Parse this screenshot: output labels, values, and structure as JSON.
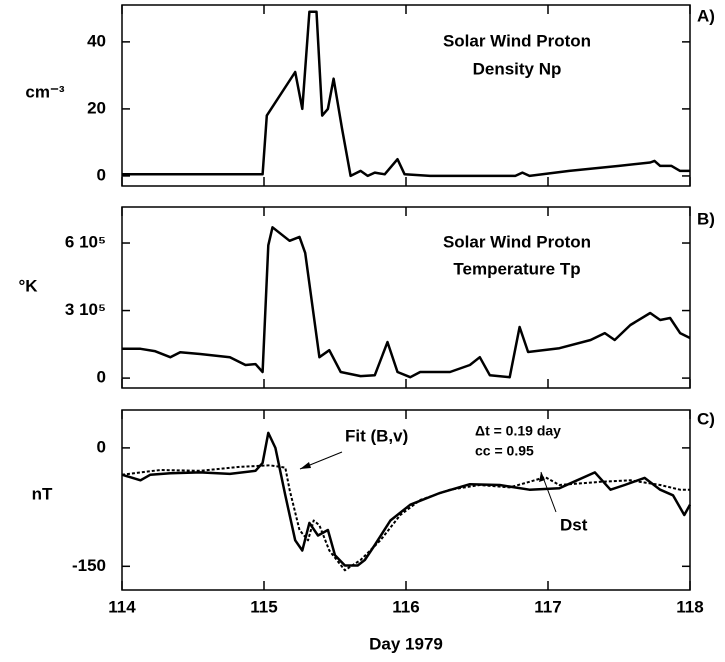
{
  "chart_data": [
    {
      "type": "line",
      "label": "A)",
      "title": "Solar  Wind Proton",
      "subtitle": "Density Np",
      "ylabel": "cm⁻³",
      "xlim": [
        114,
        118
      ],
      "xticks": [
        114,
        115,
        116,
        117,
        118
      ],
      "ylim": [
        -3,
        51
      ],
      "yticks": [
        0,
        20,
        40
      ],
      "color": "#000000",
      "x": [
        114.0,
        114.99,
        115.02,
        115.22,
        115.27,
        115.32,
        115.37,
        115.41,
        115.45,
        115.49,
        115.55,
        115.61,
        115.68,
        115.73,
        115.78,
        115.85,
        115.94,
        115.99,
        116.17,
        116.52,
        116.77,
        116.82,
        116.87,
        117.15,
        117.5,
        117.72,
        117.75,
        117.79,
        117.87,
        117.93,
        118.0
      ],
      "values": [
        0.5,
        0.5,
        18,
        31,
        20,
        49,
        49,
        18,
        20,
        29,
        14,
        0,
        1.5,
        0,
        1,
        0.5,
        5,
        0.5,
        0,
        0,
        0,
        1,
        0,
        1.5,
        3,
        4,
        4.5,
        3,
        3,
        1.5,
        1.5
      ]
    },
    {
      "type": "line",
      "label": "B)",
      "title": "Solar  Wind Proton",
      "subtitle": "Temperature Tp",
      "ylabel": "°K",
      "xlim": [
        114,
        118
      ],
      "xticks": [
        114,
        115,
        116,
        117,
        118
      ],
      "ylim": [
        -44000,
        760000
      ],
      "yticks": [
        0,
        {
          "value": 300000,
          "label": "3 10⁵"
        },
        {
          "value": 600000,
          "label": "6 10⁵"
        }
      ],
      "color": "#000000",
      "x": [
        114.0,
        114.13,
        114.23,
        114.34,
        114.41,
        114.55,
        114.76,
        114.87,
        114.94,
        114.99,
        115.03,
        115.06,
        115.18,
        115.25,
        115.29,
        115.39,
        115.46,
        115.54,
        115.68,
        115.78,
        115.87,
        115.94,
        116.03,
        116.1,
        116.31,
        116.45,
        116.52,
        116.59,
        116.73,
        116.8,
        116.86,
        117.08,
        117.3,
        117.4,
        117.47,
        117.58,
        117.72,
        117.79,
        117.86,
        117.93,
        118.0
      ],
      "values": [
        130000,
        130000,
        120000,
        93000,
        115000,
        107000,
        93000,
        58000,
        62000,
        27000,
        590000,
        670000,
        610000,
        627000,
        556000,
        93000,
        124000,
        27000,
        9000,
        13000,
        160000,
        27000,
        4000,
        27000,
        27000,
        58000,
        93000,
        13000,
        4000,
        227000,
        116000,
        133000,
        169000,
        200000,
        169000,
        236000,
        289000,
        258000,
        267000,
        200000,
        178000
      ]
    },
    {
      "type": "line",
      "label": "C)",
      "ylabel": "nT",
      "xlabel": "Day  1979",
      "annotations": [
        "Δt = 0.19 day",
        "cc = 0.95"
      ],
      "xlim": [
        114,
        118
      ],
      "xticks": [
        114,
        115,
        116,
        117,
        118
      ],
      "ylim": [
        -180,
        48
      ],
      "yticks": [
        0,
        -150
      ],
      "series": [
        {
          "name": "Dst",
          "color": "#000000",
          "dash": false,
          "x": [
            114.0,
            114.13,
            114.2,
            114.34,
            114.55,
            114.76,
            114.94,
            114.99,
            115.03,
            115.08,
            115.15,
            115.22,
            115.27,
            115.32,
            115.38,
            115.45,
            115.5,
            115.57,
            115.66,
            115.71,
            115.78,
            115.89,
            116.03,
            116.24,
            116.45,
            116.66,
            116.87,
            117.08,
            117.33,
            117.44,
            117.54,
            117.68,
            117.79,
            117.88,
            117.96,
            118.0
          ],
          "values": [
            -34,
            -41,
            -34,
            -32,
            -31,
            -33,
            -29,
            -19,
            19,
            0,
            -60,
            -117,
            -130,
            -95,
            -111,
            -104,
            -136,
            -149,
            -149,
            -142,
            -123,
            -92,
            -72,
            -57,
            -46,
            -47,
            -53,
            -51,
            -31,
            -53,
            -47,
            -38,
            -53,
            -60,
            -85,
            -72
          ]
        },
        {
          "name": "Fit (B,v)",
          "color": "#000000",
          "dash": true,
          "x": [
            114.0,
            114.27,
            114.55,
            114.83,
            115.04,
            115.15,
            115.18,
            115.25,
            115.31,
            115.35,
            115.39,
            115.46,
            115.57,
            115.68,
            115.82,
            115.96,
            116.1,
            116.31,
            116.52,
            116.73,
            116.87,
            116.98,
            117.08,
            117.37,
            117.58,
            117.79,
            117.93,
            118.0
          ],
          "values": [
            -34,
            -28,
            -29,
            -24,
            -22,
            -25,
            -53,
            -104,
            -117,
            -92,
            -98,
            -130,
            -155,
            -142,
            -117,
            -85,
            -66,
            -53,
            -47,
            -50,
            -43,
            -37,
            -47,
            -43,
            -41,
            -47,
            -53,
            -53
          ]
        }
      ]
    }
  ]
}
